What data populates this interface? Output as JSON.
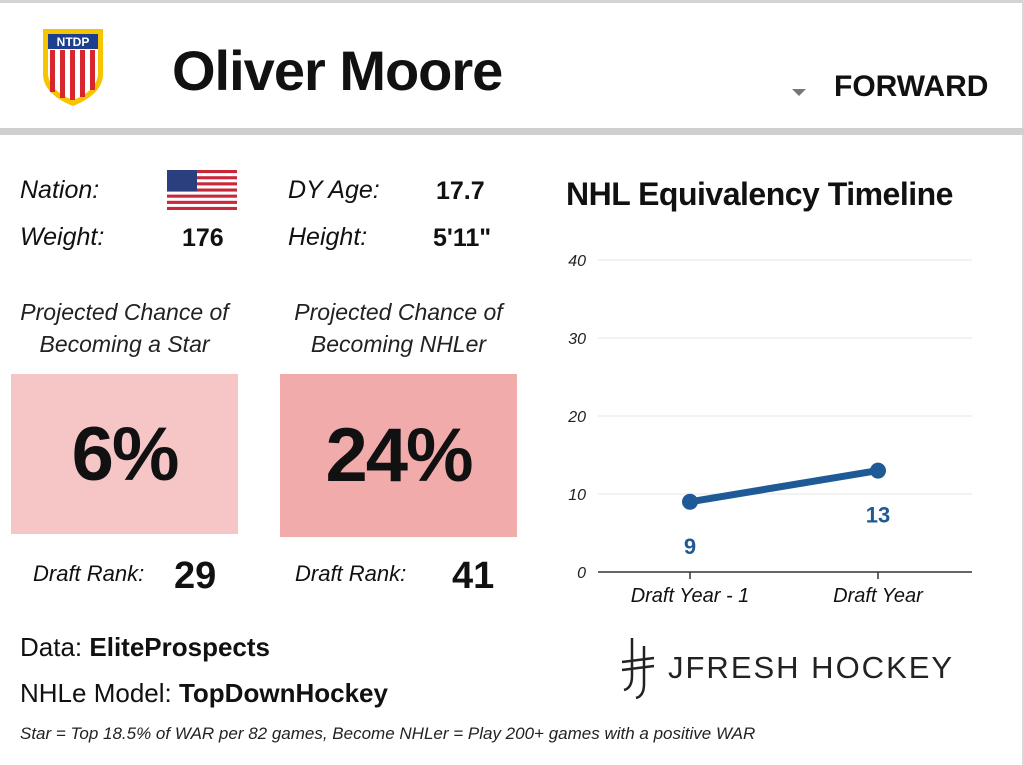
{
  "header": {
    "logo_text": "NTDP",
    "player_name": "Oliver Moore",
    "position": "FORWARD"
  },
  "bio": {
    "nation_label": "Nation:",
    "nation_flag": "us-flag-icon",
    "weight_label": "Weight:",
    "weight_value": "176",
    "age_label": "DY Age:",
    "age_value": "17.7",
    "height_label": "Height:",
    "height_value": "5'11\""
  },
  "projections": {
    "star": {
      "title_line1": "Projected Chance of",
      "title_line2": "Becoming a Star",
      "value": "6%",
      "color": "#f6c6c6",
      "rank_label": "Draft Rank:",
      "rank_value": "29"
    },
    "nhler": {
      "title_line1": "Projected Chance of",
      "title_line2": "Becoming NHLer",
      "value": "24%",
      "color": "#f2abab",
      "rank_label": "Draft Rank:",
      "rank_value": "41"
    }
  },
  "credits": {
    "data_label": "Data: ",
    "data_value": "EliteProspects",
    "model_label": "NHLe Model: ",
    "model_value": "TopDownHockey",
    "footnote": "Star = Top 18.5% of WAR per 82 games, Become NHLer = Play 200+ games with a positive WAR",
    "brand": "JFRESH HOCKEY"
  },
  "chart_data": {
    "type": "line",
    "title": "NHL Equivalency Timeline",
    "categories": [
      "Draft Year - 1",
      "Draft Year"
    ],
    "series": [
      {
        "values": [
          9,
          13
        ],
        "color": "#1f5a96"
      }
    ],
    "data_labels": [
      "9",
      "13"
    ],
    "ylim": [
      0,
      40
    ],
    "yticks": [
      0,
      10,
      20,
      30,
      40
    ],
    "grid": true,
    "xlabel": "",
    "ylabel": ""
  }
}
